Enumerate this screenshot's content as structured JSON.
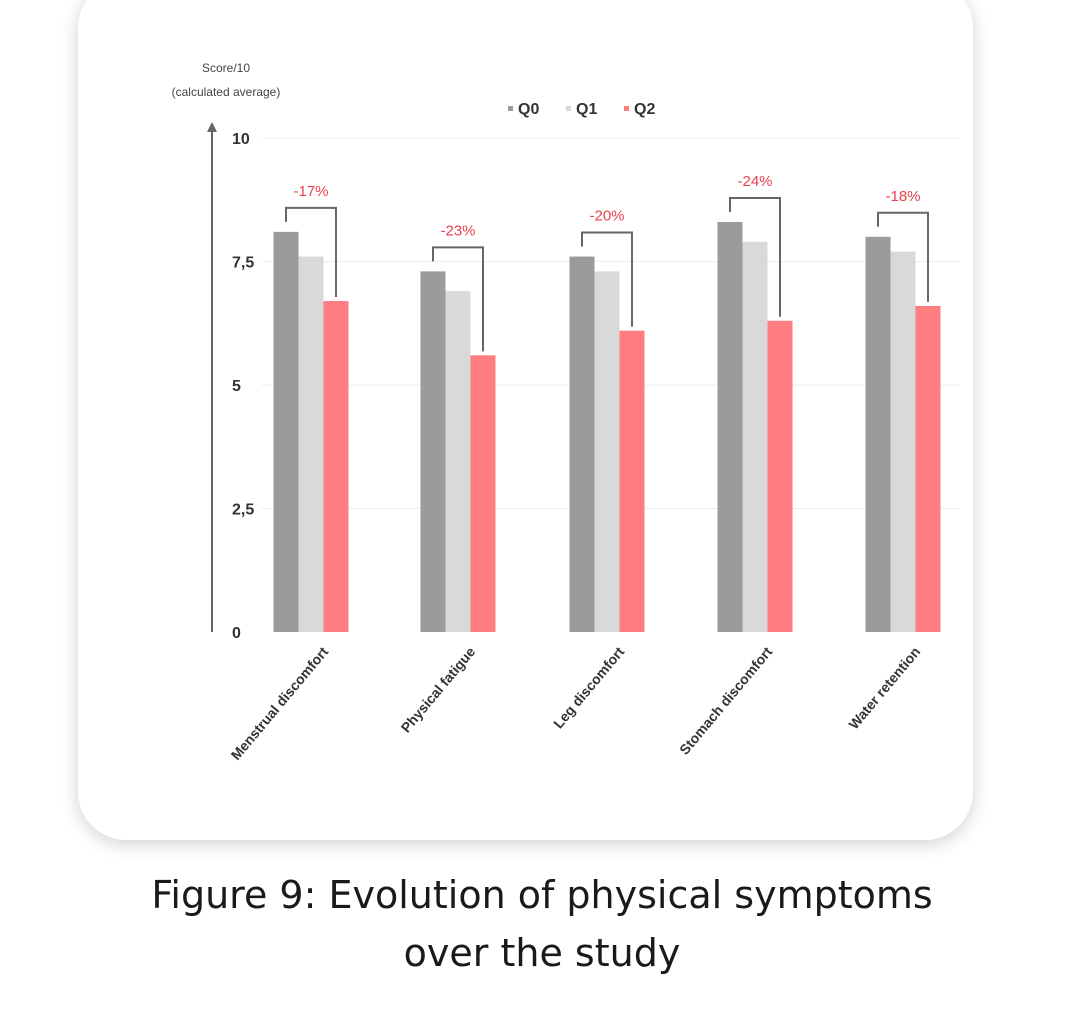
{
  "chart_data": {
    "type": "bar",
    "ylabel_line1": "Score/10",
    "ylabel_line2": "(calculated average)",
    "ylim": [
      0,
      10
    ],
    "yticks": [
      0,
      2.5,
      5,
      7.5,
      10
    ],
    "ytick_labels": [
      "0",
      "2,5",
      "5",
      "7,5",
      "10"
    ],
    "grid": true,
    "legend_position": "top-center",
    "categories": [
      "Menstrual discomfort",
      "Physical fatigue",
      "Leg discomfort",
      "Stomach discomfort",
      "Water retention"
    ],
    "series": [
      {
        "name": "Q0",
        "color": "#9b9b9b",
        "values": [
          8.1,
          7.3,
          7.6,
          8.3,
          8.0
        ]
      },
      {
        "name": "Q1",
        "color": "#d9d9d9",
        "values": [
          7.6,
          6.9,
          7.3,
          7.9,
          7.7
        ]
      },
      {
        "name": "Q2",
        "color": "#ff7c80",
        "values": [
          6.7,
          5.6,
          6.1,
          6.3,
          6.6
        ]
      }
    ],
    "annotations": [
      "-17%",
      "-23%",
      "-20%",
      "-24%",
      "-18%"
    ],
    "annotation_color": "#e8424f"
  },
  "caption_line1": "Figure 9: Evolution of physical symptoms",
  "caption_line2": "over the study"
}
